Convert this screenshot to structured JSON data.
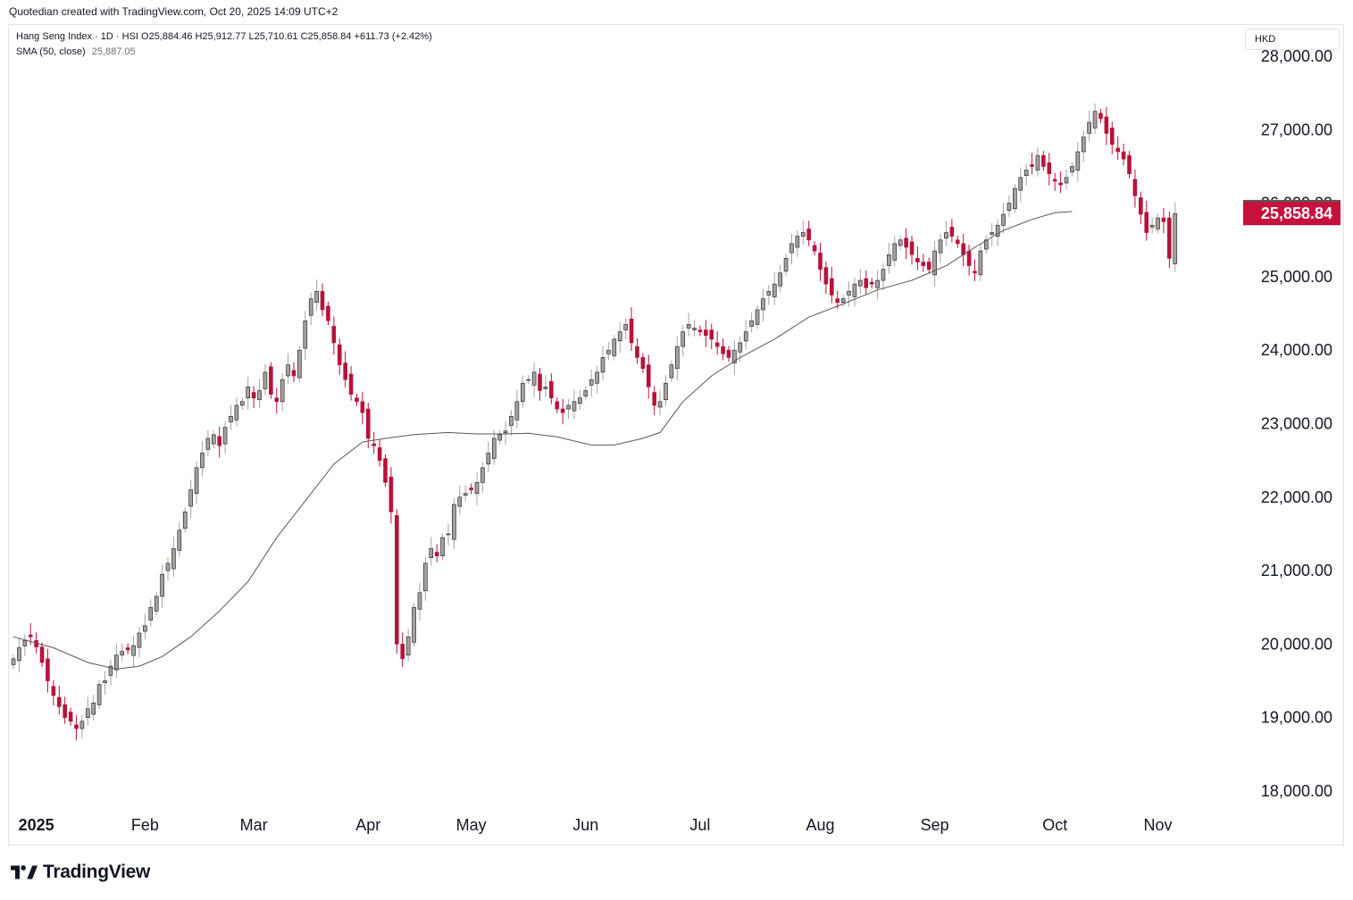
{
  "credit": "Quotedian created with TradingView.com, Oct 20, 2025 14:09 UTC+2",
  "legend": {
    "symbol_line": "Hang Seng Index · 1D · HSI  O25,884.46  H25,912.77  L25,710.61  C25,858.84  +611.73 (+2.42%)",
    "sma_label": "SMA (50, close)",
    "sma_value": "25,887.05"
  },
  "currency_button": "HKD",
  "brand": "TradingView",
  "colors": {
    "up": "#a7a19b",
    "down": "#b8123a",
    "sma": "#5d5752",
    "sma_tag": "#5d5550",
    "price_tag": "#c8103c"
  },
  "chart_data": {
    "type": "candlestick",
    "title": "Hang Seng Index · 1D · HSI",
    "ylabel": "HKD",
    "ylim": [
      17700,
      28100
    ],
    "y_ticks": [
      {
        "value": 18000,
        "label": "18,000.00"
      },
      {
        "value": 19000,
        "label": "19,000.00"
      },
      {
        "value": 20000,
        "label": "20,000.00"
      },
      {
        "value": 21000,
        "label": "21,000.00"
      },
      {
        "value": 22000,
        "label": "22,000.00"
      },
      {
        "value": 23000,
        "label": "23,000.00"
      },
      {
        "value": 24000,
        "label": "24,000.00"
      },
      {
        "value": 25000,
        "label": "25,000.00"
      },
      {
        "value": 26000,
        "label": "26,000.00"
      },
      {
        "value": 27000,
        "label": "27,000.00"
      },
      {
        "value": 28000,
        "label": "28,000.00"
      }
    ],
    "x_ticks": [
      {
        "label": "2025",
        "index": 4,
        "bold": true
      },
      {
        "label": "Feb",
        "index": 23
      },
      {
        "label": "Mar",
        "index": 42
      },
      {
        "label": "Apr",
        "index": 62
      },
      {
        "label": "May",
        "index": 80
      },
      {
        "label": "Jun",
        "index": 100
      },
      {
        "label": "Jul",
        "index": 120
      },
      {
        "label": "Aug",
        "index": 141
      },
      {
        "label": "Sep",
        "index": 161
      },
      {
        "label": "Oct",
        "index": 182
      },
      {
        "label": "Nov",
        "index": 200
      }
    ],
    "x_count": 207,
    "last_price_tag": "25,858.84",
    "last_price": 25858.84,
    "sma_tag": "25,887.05",
    "sma_last": 25887.05,
    "closes": [
      19800,
      19950,
      20050,
      20100,
      19960,
      19750,
      19500,
      19300,
      19150,
      19000,
      18950,
      18850,
      18950,
      19120,
      19200,
      19450,
      19500,
      19700,
      19850,
      19900,
      19920,
      19980,
      20150,
      20250,
      20500,
      20650,
      20950,
      21100,
      21300,
      21550,
      21800,
      22100,
      22400,
      22600,
      22800,
      22850,
      22700,
      22950,
      23100,
      23250,
      23300,
      23500,
      23350,
      23450,
      23700,
      23400,
      23300,
      23600,
      23800,
      23650,
      24000,
      24400,
      24700,
      24800,
      24550,
      24400,
      24100,
      23800,
      23600,
      23400,
      23300,
      23150,
      22800,
      22700,
      22500,
      22200,
      21800,
      20000,
      19800,
      20100,
      20500,
      20700,
      21100,
      21300,
      21200,
      21450,
      21500,
      21900,
      22000,
      22050,
      22100,
      22200,
      22400,
      22600,
      22800,
      22850,
      22900,
      23100,
      23300,
      23550,
      23600,
      23700,
      23450,
      23500,
      23350,
      23200,
      23150,
      23250,
      23300,
      23350,
      23450,
      23600,
      23700,
      23900,
      24000,
      24150,
      24250,
      24350,
      24100,
      23900,
      23750,
      23500,
      23250,
      23300,
      23550,
      23800,
      24050,
      24250,
      24350,
      24300,
      24250,
      24200,
      24150,
      24050,
      23950,
      23900,
      24000,
      24100,
      24250,
      24400,
      24550,
      24700,
      24800,
      24900,
      25050,
      25250,
      25450,
      25550,
      25600,
      25500,
      25350,
      25100,
      24900,
      24750,
      24650,
      24700,
      24800,
      24900,
      24950,
      24850,
      24900,
      24950,
      25100,
      25300,
      25450,
      25500,
      25400,
      25300,
      25200,
      25150,
      25100,
      25350,
      25500,
      25600,
      25550,
      25450,
      25300,
      25150,
      25050,
      25350,
      25500,
      25600,
      25700,
      25850,
      26000,
      26200,
      26350,
      26450,
      26500,
      26650,
      26500,
      26400,
      26300,
      26250,
      26350,
      26500,
      26700,
      26900,
      27100,
      27250,
      27150,
      26950,
      26800,
      26700,
      26600,
      26400,
      26100,
      25850,
      25600,
      25700,
      25800,
      25750,
      25250,
      25858.84
    ],
    "sma_points": [
      {
        "x": 0,
        "y": 20100
      },
      {
        "x": 7,
        "y": 19950
      },
      {
        "x": 13,
        "y": 19750
      },
      {
        "x": 18,
        "y": 19660
      },
      {
        "x": 22,
        "y": 19700
      },
      {
        "x": 26,
        "y": 19830
      },
      {
        "x": 31,
        "y": 20100
      },
      {
        "x": 36,
        "y": 20450
      },
      {
        "x": 41,
        "y": 20850
      },
      {
        "x": 46,
        "y": 21450
      },
      {
        "x": 51,
        "y": 21950
      },
      {
        "x": 56,
        "y": 22450
      },
      {
        "x": 61,
        "y": 22750
      },
      {
        "x": 65,
        "y": 22800
      },
      {
        "x": 70,
        "y": 22850
      },
      {
        "x": 76,
        "y": 22880
      },
      {
        "x": 81,
        "y": 22860
      },
      {
        "x": 86,
        "y": 22860
      },
      {
        "x": 90,
        "y": 22870
      },
      {
        "x": 95,
        "y": 22820
      },
      {
        "x": 101,
        "y": 22710
      },
      {
        "x": 105,
        "y": 22710
      },
      {
        "x": 110,
        "y": 22800
      },
      {
        "x": 113,
        "y": 22880
      },
      {
        "x": 117,
        "y": 23300
      },
      {
        "x": 122,
        "y": 23650
      },
      {
        "x": 127,
        "y": 23900
      },
      {
        "x": 133,
        "y": 24150
      },
      {
        "x": 139,
        "y": 24450
      },
      {
        "x": 145,
        "y": 24630
      },
      {
        "x": 151,
        "y": 24820
      },
      {
        "x": 157,
        "y": 24950
      },
      {
        "x": 163,
        "y": 25150
      },
      {
        "x": 168,
        "y": 25400
      },
      {
        "x": 173,
        "y": 25630
      },
      {
        "x": 178,
        "y": 25780
      },
      {
        "x": 182,
        "y": 25870
      },
      {
        "x": 185,
        "y": 25887.05
      }
    ]
  }
}
